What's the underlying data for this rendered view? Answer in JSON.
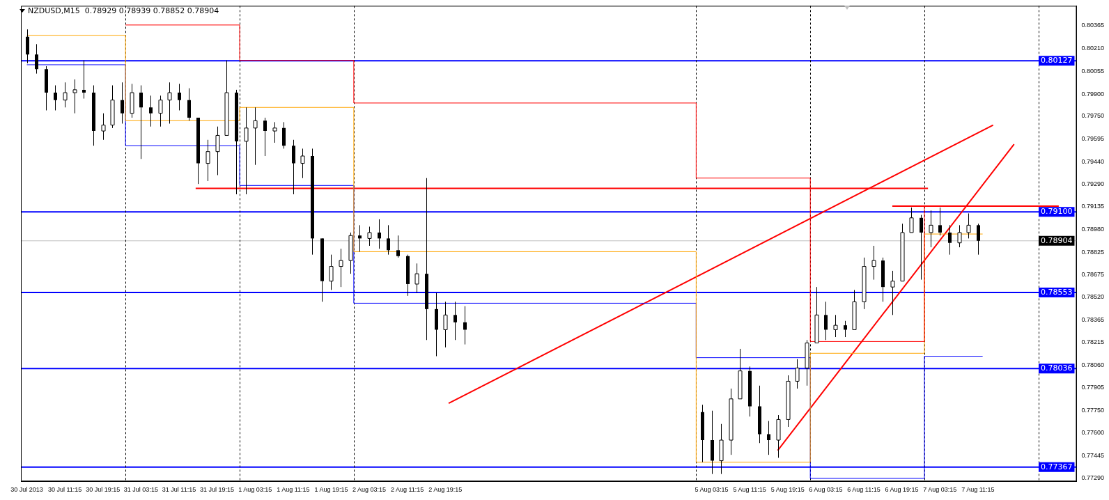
{
  "chart_data": {
    "type": "candlestick",
    "title": "NZDUSD,M15  0.78929 0.78939 0.78852 0.78904",
    "x": [
      "2013-07-30T03:15",
      "2013-07-30T05:15",
      "2013-07-30T07:15",
      "2013-07-30T09:15",
      "2013-07-30T11:15",
      "2013-07-30T13:15",
      "2013-07-30T15:15",
      "2013-07-30T17:15",
      "2013-07-30T19:15",
      "2013-07-30T21:15",
      "2013-07-30T23:15",
      "2013-07-31T01:15",
      "2013-07-31T03:15",
      "2013-07-31T05:15",
      "2013-07-31T07:15",
      "2013-07-31T09:15",
      "2013-07-31T11:15",
      "2013-07-31T13:15",
      "2013-07-31T15:15",
      "2013-07-31T17:15",
      "2013-07-31T19:15",
      "2013-07-31T21:15",
      "2013-07-31T23:15",
      "2013-08-01T01:15",
      "2013-08-01T03:15",
      "2013-08-01T05:15",
      "2013-08-01T07:15",
      "2013-08-01T09:15",
      "2013-08-01T11:15",
      "2013-08-01T13:15",
      "2013-08-01T15:15",
      "2013-08-01T17:15",
      "2013-08-01T19:15",
      "2013-08-01T21:15",
      "2013-08-01T23:15",
      "2013-08-02T01:15",
      "2013-08-02T03:15",
      "2013-08-02T05:15",
      "2013-08-02T07:15",
      "2013-08-02T09:15",
      "2013-08-02T11:15",
      "2013-08-02T13:15",
      "2013-08-02T15:15",
      "2013-08-02T17:15",
      "2013-08-02T19:15",
      "2013-08-02T21:15",
      "2013-08-02T23:15",
      "2013-08-05T01:15",
      "2013-08-05T03:15",
      "2013-08-05T05:15",
      "2013-08-05T07:15",
      "2013-08-05T09:15",
      "2013-08-05T11:15",
      "2013-08-05T13:15",
      "2013-08-05T15:15",
      "2013-08-05T17:15",
      "2013-08-05T19:15",
      "2013-08-05T21:15",
      "2013-08-05T23:15",
      "2013-08-06T01:15",
      "2013-08-06T03:15",
      "2013-08-06T05:15",
      "2013-08-06T07:15",
      "2013-08-06T09:15",
      "2013-08-06T11:15",
      "2013-08-06T13:15",
      "2013-08-06T15:15",
      "2013-08-06T17:15",
      "2013-08-06T19:15",
      "2013-08-06T21:15",
      "2013-08-06T23:15",
      "2013-08-07T01:15",
      "2013-08-07T03:15",
      "2013-08-07T05:15",
      "2013-08-07T07:15",
      "2013-08-07T09:15",
      "2013-08-07T11:15"
    ],
    "ohlc": [
      [
        0.8029,
        0.8034,
        0.8011,
        0.8017
      ],
      [
        0.8017,
        0.8024,
        0.8004,
        0.8007
      ],
      [
        0.8007,
        0.8009,
        0.7979,
        0.7991
      ],
      [
        0.7991,
        0.7996,
        0.7979,
        0.7986
      ],
      [
        0.7986,
        0.7998,
        0.7981,
        0.7991
      ],
      [
        0.7991,
        0.8,
        0.7977,
        0.7993
      ],
      [
        0.7993,
        0.8013,
        0.7987,
        0.7991
      ],
      [
        0.7991,
        0.7996,
        0.7955,
        0.7965
      ],
      [
        0.7965,
        0.7977,
        0.7959,
        0.7969
      ],
      [
        0.7969,
        0.7996,
        0.7967,
        0.7986
      ],
      [
        0.7986,
        0.7998,
        0.797,
        0.7977
      ],
      [
        0.7977,
        0.7997,
        0.7974,
        0.7991
      ],
      [
        0.7991,
        0.7996,
        0.7946,
        0.7981
      ],
      [
        0.7981,
        0.7989,
        0.7968,
        0.7977
      ],
      [
        0.7977,
        0.7989,
        0.7968,
        0.7986
      ],
      [
        0.7986,
        0.7998,
        0.797,
        0.7991
      ],
      [
        0.7991,
        0.7997,
        0.7979,
        0.7986
      ],
      [
        0.7986,
        0.7994,
        0.7972,
        0.7974
      ],
      [
        0.7974,
        0.7974,
        0.7929,
        0.7943
      ],
      [
        0.7943,
        0.7959,
        0.7931,
        0.7951
      ],
      [
        0.7951,
        0.7968,
        0.7935,
        0.7962
      ],
      [
        0.7962,
        0.8013,
        0.7962,
        0.7991
      ],
      [
        0.7991,
        0.7993,
        0.7922,
        0.7958
      ],
      [
        0.7958,
        0.7981,
        0.7922,
        0.7967
      ],
      [
        0.7967,
        0.7981,
        0.7942,
        0.7972
      ],
      [
        0.7972,
        0.7974,
        0.7948,
        0.7965
      ],
      [
        0.7965,
        0.7971,
        0.7957,
        0.7967
      ],
      [
        0.7967,
        0.7971,
        0.7953,
        0.7955
      ],
      [
        0.7955,
        0.7959,
        0.7922,
        0.7943
      ],
      [
        0.7943,
        0.7953,
        0.7933,
        0.7948
      ],
      [
        0.7948,
        0.7953,
        0.7881,
        0.7892
      ],
      [
        0.7892,
        0.7892,
        0.7849,
        0.7863
      ],
      [
        0.7863,
        0.7881,
        0.7857,
        0.7873
      ],
      [
        0.7873,
        0.7885,
        0.7859,
        0.7877
      ],
      [
        0.7877,
        0.7896,
        0.7868,
        0.7894
      ],
      [
        0.7894,
        0.7901,
        0.7883,
        0.7892
      ],
      [
        0.7892,
        0.79,
        0.7887,
        0.7896
      ],
      [
        0.7896,
        0.7905,
        0.7885,
        0.7892
      ],
      [
        0.7892,
        0.7901,
        0.7881,
        0.7884
      ],
      [
        0.7884,
        0.7894,
        0.7879,
        0.788
      ],
      [
        0.788,
        0.7881,
        0.7853,
        0.7861
      ],
      [
        0.7861,
        0.7875,
        0.7855,
        0.7868
      ],
      [
        0.7868,
        0.7933,
        0.7823,
        0.7844
      ],
      [
        0.7844,
        0.7855,
        0.7812,
        0.783
      ],
      [
        0.783,
        0.7849,
        0.7818,
        0.784
      ],
      [
        0.784,
        0.7849,
        0.7823,
        0.7835
      ],
      [
        0.7835,
        0.7846,
        0.782,
        0.783
      ],
      [
        0.7774,
        0.7779,
        0.774,
        0.7755
      ],
      [
        0.7755,
        0.7775,
        0.7732,
        0.7741
      ],
      [
        0.7741,
        0.7766,
        0.7732,
        0.7755
      ],
      [
        0.7755,
        0.779,
        0.7745,
        0.7783
      ],
      [
        0.7783,
        0.7817,
        0.7783,
        0.7802
      ],
      [
        0.7802,
        0.7805,
        0.7771,
        0.7778
      ],
      [
        0.7778,
        0.7792,
        0.7753,
        0.7759
      ],
      [
        0.7759,
        0.7768,
        0.7745,
        0.7755
      ],
      [
        0.7755,
        0.7772,
        0.7743,
        0.7769
      ],
      [
        0.7769,
        0.7799,
        0.7764,
        0.7795
      ],
      [
        0.7795,
        0.781,
        0.779,
        0.7804
      ],
      [
        0.7804,
        0.7823,
        0.7792,
        0.7821
      ],
      [
        0.7821,
        0.7859,
        0.7821,
        0.784
      ],
      [
        0.784,
        0.7849,
        0.7823,
        0.783
      ],
      [
        0.783,
        0.784,
        0.7825,
        0.7833
      ],
      [
        0.7833,
        0.7836,
        0.7825,
        0.783
      ],
      [
        0.783,
        0.7857,
        0.783,
        0.7849
      ],
      [
        0.7849,
        0.7879,
        0.7844,
        0.7873
      ],
      [
        0.7873,
        0.7887,
        0.7864,
        0.7877
      ],
      [
        0.7877,
        0.7879,
        0.7849,
        0.7859
      ],
      [
        0.7859,
        0.787,
        0.784,
        0.7863
      ],
      [
        0.7863,
        0.7902,
        0.7863,
        0.7896
      ],
      [
        0.7896,
        0.7913,
        0.7896,
        0.7906
      ],
      [
        0.7906,
        0.7908,
        0.7864,
        0.7896
      ],
      [
        0.7896,
        0.7911,
        0.7886,
        0.7901
      ],
      [
        0.7901,
        0.7913,
        0.7894,
        0.7896
      ],
      [
        0.7896,
        0.7901,
        0.7881,
        0.7889
      ],
      [
        0.7889,
        0.7901,
        0.7886,
        0.7896
      ],
      [
        0.7896,
        0.7909,
        0.7892,
        0.7901
      ],
      [
        0.7901,
        0.7902,
        0.7881,
        0.78904
      ]
    ],
    "series": [
      {
        "type": "step",
        "color": "#ff0000",
        "x": [
          "2013-07-31T00:00",
          "2013-08-01T00:00",
          "2013-08-02T00:00",
          "2013-08-05T00:00",
          "2013-08-06T00:00",
          "2013-08-07T00:00",
          "2013-08-07T12:15"
        ],
        "values": [
          0.8037,
          0.8013,
          0.7984,
          0.7933,
          0.7822,
          0.7914,
          0.7914
        ]
      },
      {
        "type": "step",
        "color": "#ffa500",
        "x": [
          "2013-07-30T03:15",
          "2013-07-31T00:00",
          "2013-08-01T00:00",
          "2013-08-02T00:00",
          "2013-08-05T00:00",
          "2013-08-06T00:00",
          "2013-08-07T00:00",
          "2013-08-07T12:15"
        ],
        "values": [
          0.803,
          0.7972,
          0.7981,
          0.7883,
          0.774,
          0.7814,
          0.7895,
          0.7895
        ]
      },
      {
        "type": "step",
        "color": "#0000ff",
        "x": [
          "2013-07-30T03:15",
          "2013-07-31T00:00",
          "2013-08-01T00:00",
          "2013-08-02T00:00",
          "2013-08-05T00:00",
          "2013-08-06T00:00",
          "2013-08-07T00:00",
          "2013-08-07T12:15"
        ],
        "values": [
          0.801,
          0.7955,
          0.7928,
          0.7848,
          0.7811,
          0.7729,
          0.7812,
          0.7812
        ]
      },
      {
        "type": "line",
        "color": "#ff0000",
        "x": [
          "2013-07-31T14:45",
          "2013-08-07T00:45"
        ],
        "values": [
          0.7926,
          0.7926
        ]
      },
      {
        "type": "line",
        "color": "#ff0000",
        "x": [
          "2013-08-06T17:15",
          "2013-08-08T04:15"
        ],
        "values": [
          0.7914,
          0.7914
        ]
      },
      {
        "type": "line",
        "color": "#ff0000",
        "x": [
          "2013-08-02T19:57",
          "2013-08-07T14:27"
        ],
        "values": [
          0.778,
          0.7969
        ]
      },
      {
        "type": "line",
        "color": "#ff0000",
        "x": [
          "2013-08-05T17:09",
          "2013-08-07T18:51"
        ],
        "values": [
          0.7748,
          0.7956
        ]
      }
    ],
    "xlim": [
      "2013-07-30T02:00",
      "2013-08-08T08:00"
    ],
    "xticks": [
      {
        "value": "2013-07-30T03:15",
        "label": "30 Jul 2013"
      },
      {
        "value": "2013-07-30T11:15",
        "label": "30 Jul 11:15"
      },
      {
        "value": "2013-07-30T19:15",
        "label": "30 Jul 19:15"
      },
      {
        "value": "2013-07-31T03:15",
        "label": "31 Jul 03:15"
      },
      {
        "value": "2013-07-31T11:15",
        "label": "31 Jul 11:15"
      },
      {
        "value": "2013-07-31T19:15",
        "label": "31 Jul 19:15"
      },
      {
        "value": "2013-08-01T03:15",
        "label": "1 Aug 03:15"
      },
      {
        "value": "2013-08-01T11:15",
        "label": "1 Aug 11:15"
      },
      {
        "value": "2013-08-01T19:15",
        "label": "1 Aug 19:15"
      },
      {
        "value": "2013-08-02T03:15",
        "label": "2 Aug 03:15"
      },
      {
        "value": "2013-08-02T11:15",
        "label": "2 Aug 11:15"
      },
      {
        "value": "2013-08-02T19:15",
        "label": "2 Aug 19:15"
      },
      {
        "value": "2013-08-05T03:15",
        "label": "5 Aug 03:15"
      },
      {
        "value": "2013-08-05T11:15",
        "label": "5 Aug 11:15"
      },
      {
        "value": "2013-08-05T19:15",
        "label": "5 Aug 19:15"
      },
      {
        "value": "2013-08-06T03:15",
        "label": "6 Aug 03:15"
      },
      {
        "value": "2013-08-06T11:15",
        "label": "6 Aug 11:15"
      },
      {
        "value": "2013-08-06T19:15",
        "label": "6 Aug 19:15"
      },
      {
        "value": "2013-08-07T03:15",
        "label": "7 Aug 03:15"
      },
      {
        "value": "2013-08-07T11:15",
        "label": "7 Aug 11:15"
      }
    ],
    "ylim": [
      0.7727,
      0.805
    ],
    "yticks": [
      {
        "value": 0.80365,
        "label": "0.80365"
      },
      {
        "value": 0.8021,
        "label": "0.80210"
      },
      {
        "value": 0.80055,
        "label": "0.80055"
      },
      {
        "value": 0.799,
        "label": "0.79900"
      },
      {
        "value": 0.7975,
        "label": "0.79750"
      },
      {
        "value": 0.79595,
        "label": "0.79595"
      },
      {
        "value": 0.7944,
        "label": "0.79440"
      },
      {
        "value": 0.7929,
        "label": "0.79290"
      },
      {
        "value": 0.79135,
        "label": "0.79135"
      },
      {
        "value": 0.7898,
        "label": "0.78980"
      },
      {
        "value": 0.78825,
        "label": "0.78825"
      },
      {
        "value": 0.78675,
        "label": "0.78675"
      },
      {
        "value": 0.7852,
        "label": "0.78520"
      },
      {
        "value": 0.78365,
        "label": "0.78365"
      },
      {
        "value": 0.78215,
        "label": "0.78215"
      },
      {
        "value": 0.7806,
        "label": "0.78060"
      },
      {
        "value": 0.77905,
        "label": "0.77905"
      },
      {
        "value": 0.7775,
        "label": "0.77750"
      },
      {
        "value": 0.776,
        "label": "0.77600"
      },
      {
        "value": 0.77445,
        "label": "0.77445"
      },
      {
        "value": 0.7729,
        "label": "0.77290"
      }
    ],
    "ref_lines": [
      {
        "axis": "y",
        "value": 0.80127,
        "label": "0.80127",
        "color": "#0000ff"
      },
      {
        "axis": "y",
        "value": 0.791,
        "label": "0.79100",
        "color": "#0000ff"
      },
      {
        "axis": "y",
        "value": 0.78553,
        "label": "0.78553",
        "color": "#0000ff"
      },
      {
        "axis": "y",
        "value": 0.78036,
        "label": "0.78036",
        "color": "#0000ff"
      },
      {
        "axis": "y",
        "value": 0.77367,
        "label": "0.77367",
        "color": "#0000ff"
      },
      {
        "axis": "y",
        "value": 0.78904,
        "label": "0.78904",
        "color": "#c0c0c0"
      },
      {
        "axis": "x",
        "value": "2013-07-31T00:00",
        "color": "#000000",
        "line_style": "dashed"
      },
      {
        "axis": "x",
        "value": "2013-08-01T00:00",
        "color": "#000000",
        "line_style": "dashed"
      },
      {
        "axis": "x",
        "value": "2013-08-02T00:00",
        "color": "#000000",
        "line_style": "dashed"
      },
      {
        "axis": "x",
        "value": "2013-08-05T00:00",
        "color": "#000000",
        "line_style": "dashed"
      },
      {
        "axis": "x",
        "value": "2013-08-06T00:00",
        "color": "#000000",
        "line_style": "dashed"
      },
      {
        "axis": "x",
        "value": "2013-08-07T00:00",
        "color": "#000000",
        "line_style": "dashed"
      },
      {
        "axis": "x",
        "value": "2013-08-08T00:00",
        "color": "#000000",
        "line_style": "dashed"
      }
    ]
  }
}
